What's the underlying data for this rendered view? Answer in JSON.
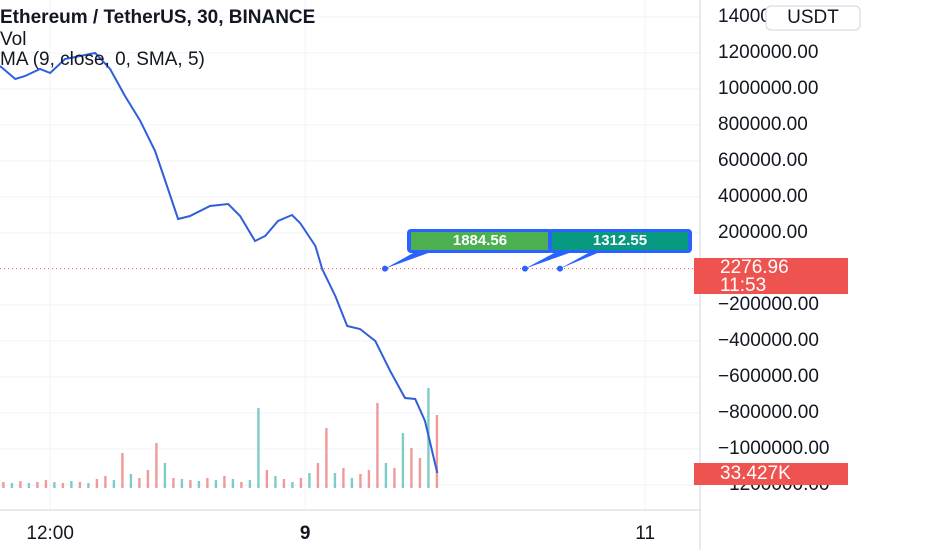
{
  "chart_data": {
    "type": "line",
    "title": "Ethereum / TetherUS, 30, BINANCE",
    "volume_title": "Vol",
    "indicator_title": "MA (9, close, 0, SMA, 5)",
    "currency": "USDT",
    "last_price": 2276.96,
    "countdown": "11:53",
    "volume_label": "33.427K",
    "callouts": [
      "1884.56",
      "1312.55"
    ],
    "xlim": [
      -11.8,
      152.9
    ],
    "xticks": [
      {
        "value": 0,
        "label": "12:00"
      },
      {
        "value": 60,
        "label": "9"
      },
      {
        "value": 140,
        "label": "11"
      }
    ],
    "ylim": [
      -1200000,
      1400000
    ],
    "yticks": [
      {
        "value": 1400000,
        "label": "1400000.00"
      },
      {
        "value": 1200000,
        "label": "1200000.00"
      },
      {
        "value": 1000000,
        "label": "1000000.00"
      },
      {
        "value": 800000,
        "label": "800000.00"
      },
      {
        "value": 600000,
        "label": "600000.00"
      },
      {
        "value": 400000,
        "label": "400000.00"
      },
      {
        "value": 200000,
        "label": "200000.00"
      },
      {
        "value": -200000,
        "label": "−200000.00"
      },
      {
        "value": -400000,
        "label": "−400000.00"
      },
      {
        "value": -600000,
        "label": "−600000.00"
      },
      {
        "value": -800000,
        "label": "−800000.00"
      },
      {
        "value": -1000000,
        "label": "−1000000.00"
      },
      {
        "value": -1200000,
        "label": "−1200000.00"
      }
    ],
    "grid": true,
    "series": [
      {
        "name": "MA",
        "color": "#2f5fd8",
        "x": [
          -11.8,
          -8.2,
          -5.9,
          -2.4,
          0,
          3.5,
          7.1,
          10.6,
          14.1,
          17.6,
          21.2,
          24.7,
          27.1,
          30.1,
          32.9,
          37.6,
          41.9,
          44.7,
          48.2,
          50.6,
          53.6,
          56.9,
          58.8,
          62.4,
          64,
          67.1,
          69.9,
          72.9,
          76.5,
          80,
          83.5,
          85.9,
          88.2,
          91.1
        ],
        "values": [
          1128000,
          1055600,
          1072200,
          1111100,
          1088900,
          1166700,
          1183300,
          1200000,
          1111100,
          961100,
          822200,
          655600,
          488900,
          277800,
          294400,
          350000,
          361100,
          294400,
          155600,
          183300,
          266700,
          300000,
          255600,
          127800,
          0,
          -150000,
          -316700,
          -333300,
          -400000,
          -566700,
          -716700,
          -722200,
          -844400,
          -1133300
        ]
      }
    ],
    "volume": {
      "x": [
        -11,
        -9,
        -7,
        -5,
        -3,
        -1,
        1,
        3,
        5,
        7,
        9,
        11,
        13,
        15,
        17,
        19,
        21,
        23,
        25,
        27,
        29,
        31,
        33,
        35,
        37,
        39,
        41,
        43,
        45,
        47,
        49,
        51,
        53,
        55,
        57,
        59,
        61,
        63,
        65,
        67,
        69,
        71,
        73,
        75,
        77,
        79,
        81,
        83,
        85,
        87,
        89,
        91
      ],
      "values": [
        2748,
        2290,
        3206,
        2290,
        2748,
        3664,
        2748,
        2290,
        3206,
        2748,
        2290,
        4122,
        5496,
        3664,
        16030,
        6412,
        4580,
        8244,
        20610,
        11450,
        4580,
        4122,
        3664,
        3206,
        4580,
        3664,
        5496,
        4122,
        2748,
        3664,
        36640,
        8244,
        5496,
        4122,
        2748,
        4580,
        6870,
        11450,
        27480,
        6870,
        9160,
        4580,
        6412,
        8244,
        38930,
        11450,
        9160,
        25190,
        18320,
        13740,
        45800,
        33427
      ],
      "colors": [
        "#ef9a9a",
        "#80cbc4",
        "#ef9a9a",
        "#80cbc4",
        "#ef9a9a",
        "#ef9a9a",
        "#80cbc4",
        "#ef9a9a",
        "#80cbc4",
        "#ef9a9a",
        "#80cbc4",
        "#ef9a9a",
        "#ef9a9a",
        "#80cbc4",
        "#ef9a9a",
        "#80cbc4",
        "#ef9a9a",
        "#ef9a9a",
        "#ef9a9a",
        "#80cbc4",
        "#ef9a9a",
        "#80cbc4",
        "#ef9a9a",
        "#80cbc4",
        "#ef9a9a",
        "#80cbc4",
        "#ef9a9a",
        "#80cbc4",
        "#ef9a9a",
        "#80cbc4",
        "#80cbc4",
        "#ef9a9a",
        "#80cbc4",
        "#ef9a9a",
        "#80cbc4",
        "#ef9a9a",
        "#80cbc4",
        "#ef9a9a",
        "#ef9a9a",
        "#80cbc4",
        "#ef9a9a",
        "#80cbc4",
        "#ef9a9a",
        "#ef9a9a",
        "#ef9a9a",
        "#80cbc4",
        "#ef9a9a",
        "#80cbc4",
        "#ef9a9a",
        "#ef9a9a",
        "#80cbc4",
        "#ef9a9a"
      ]
    }
  }
}
